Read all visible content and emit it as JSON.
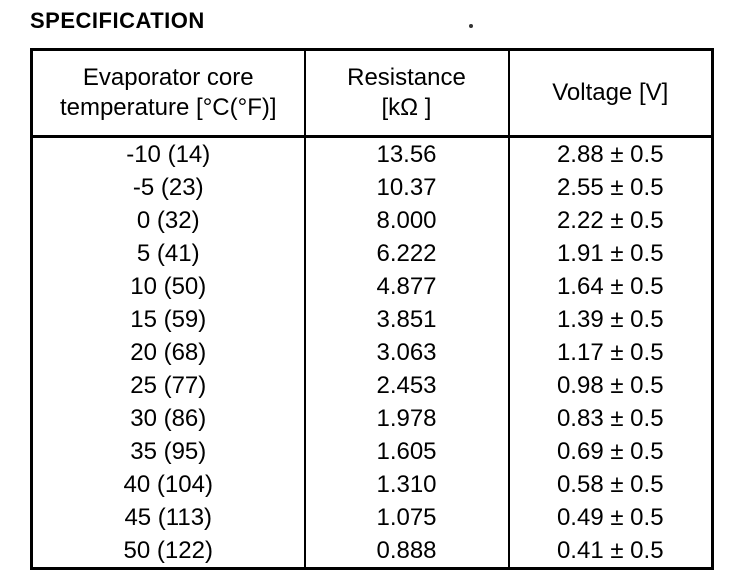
{
  "page": {
    "title": "SPECIFICATION"
  },
  "table": {
    "columns": [
      {
        "label_line1": "Evaporator core",
        "label_line2": "temperature [°C(°F)]"
      },
      {
        "label_line1": "Resistance",
        "label_line2": "[kΩ ]"
      },
      {
        "label_line1": "Voltage [V]",
        "label_line2": ""
      }
    ],
    "rows": [
      {
        "temperature": "-10 (14)",
        "resistance": "13.56",
        "voltage": "2.88 ± 0.5"
      },
      {
        "temperature": "-5 (23)",
        "resistance": "10.37",
        "voltage": "2.55 ± 0.5"
      },
      {
        "temperature": "0 (32)",
        "resistance": "8.000",
        "voltage": "2.22 ± 0.5"
      },
      {
        "temperature": "5 (41)",
        "resistance": "6.222",
        "voltage": "1.91 ± 0.5"
      },
      {
        "temperature": "10 (50)",
        "resistance": "4.877",
        "voltage": "1.64 ± 0.5"
      },
      {
        "temperature": "15 (59)",
        "resistance": "3.851",
        "voltage": "1.39 ± 0.5"
      },
      {
        "temperature": "20 (68)",
        "resistance": "3.063",
        "voltage": "1.17 ± 0.5"
      },
      {
        "temperature": "25 (77)",
        "resistance": "2.453",
        "voltage": "0.98 ± 0.5"
      },
      {
        "temperature": "30 (86)",
        "resistance": "1.978",
        "voltage": "0.83 ± 0.5"
      },
      {
        "temperature": "35 (95)",
        "resistance": "1.605",
        "voltage": "0.69 ± 0.5"
      },
      {
        "temperature": "40 (104)",
        "resistance": "1.310",
        "voltage": "0.58 ± 0.5"
      },
      {
        "temperature": "45 (113)",
        "resistance": "1.075",
        "voltage": "0.49 ± 0.5"
      },
      {
        "temperature": "50 (122)",
        "resistance": "0.888",
        "voltage": "0.41 ± 0.5"
      }
    ]
  }
}
